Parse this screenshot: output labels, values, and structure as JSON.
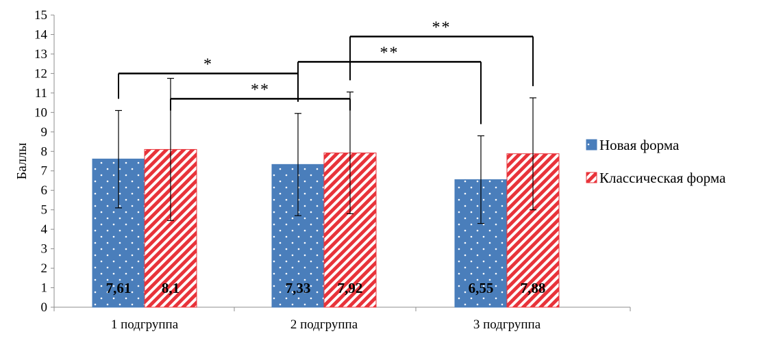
{
  "chart_data": {
    "type": "bar",
    "categories": [
      "1 подгруппа",
      "2 подгруппа",
      "3 подгруппа"
    ],
    "series": [
      {
        "name": "Новая форма",
        "values": [
          7.61,
          7.33,
          6.55
        ],
        "value_labels": [
          "7,61",
          "7,33",
          "6,55"
        ],
        "error_low": [
          5.1,
          4.7,
          4.3
        ],
        "error_high": [
          10.1,
          9.95,
          8.8
        ],
        "color": "#4a7ebb",
        "pattern": "white-dots"
      },
      {
        "name": "Классическая форма",
        "values": [
          8.1,
          7.92,
          7.88
        ],
        "value_labels": [
          "8,1",
          "7,92",
          "7,88"
        ],
        "error_low": [
          4.45,
          4.8,
          5.0
        ],
        "error_high": [
          11.75,
          11.05,
          10.75
        ],
        "color": "#e8333a",
        "pattern": "diagonal-stripes"
      }
    ],
    "ylabel": "Баллы",
    "xlabel": "",
    "ylim": [
      0,
      15
    ],
    "yticks": [
      "0",
      "1",
      "2",
      "3",
      "4",
      "5",
      "6",
      "7",
      "8",
      "9",
      "10",
      "11",
      "12",
      "13",
      "14",
      "15"
    ],
    "grid": false,
    "legend_position": "right",
    "significance_brackets": [
      {
        "from": [
          0,
          0
        ],
        "to": [
          1,
          0
        ],
        "level": 12,
        "label": "*"
      },
      {
        "from": [
          0,
          1
        ],
        "to": [
          1,
          1
        ],
        "level": 10.7,
        "label": "**"
      },
      {
        "from": [
          1,
          0
        ],
        "to": [
          2,
          0
        ],
        "level": 12.6,
        "label": "**"
      },
      {
        "from": [
          1,
          1
        ],
        "to": [
          2,
          1
        ],
        "level": 13.9,
        "label": "**"
      }
    ]
  }
}
